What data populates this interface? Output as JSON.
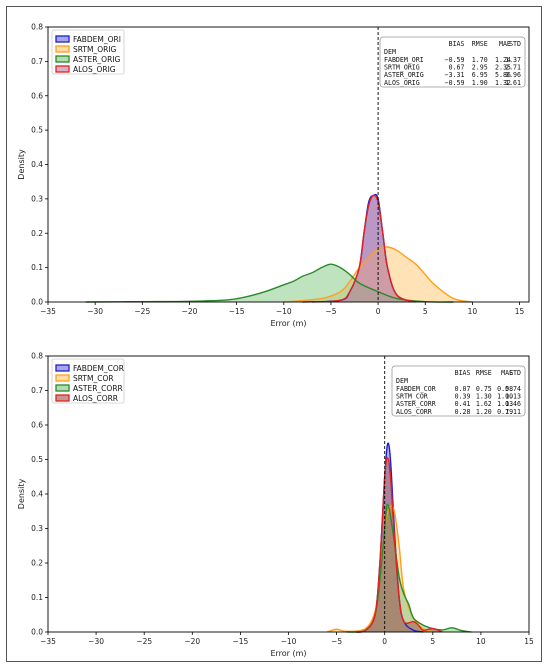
{
  "chart_data": [
    {
      "type": "area",
      "xlabel": "Error (m)",
      "ylabel": "Density",
      "xlim": [
        -35,
        16
      ],
      "ylim": [
        0,
        0.8
      ],
      "xticks": [
        -35,
        -30,
        -25,
        -20,
        -15,
        -10,
        -5,
        0,
        5,
        10,
        15
      ],
      "yticks": [
        0.0,
        0.1,
        0.2,
        0.3,
        0.4,
        0.5,
        0.6,
        0.7,
        0.8
      ],
      "vline": 0,
      "legend_position": "top-left",
      "series": [
        {
          "name": "FABDEM_ORI",
          "color": "#1f1fcf",
          "fill": "#6a6ad8",
          "x": [
            -8,
            -4,
            -3,
            -2,
            -1.5,
            -1,
            -0.5,
            0,
            0.5,
            1,
            2,
            4
          ],
          "y": [
            0,
            0.005,
            0.03,
            0.1,
            0.2,
            0.29,
            0.31,
            0.3,
            0.2,
            0.1,
            0.02,
            0
          ]
        },
        {
          "name": "SRTM_ORIG",
          "color": "#ff9f1a",
          "fill": "#ffc870",
          "x": [
            -10,
            -6,
            -4,
            -3,
            -2,
            -1,
            0,
            1,
            2,
            3,
            4,
            5,
            6,
            8,
            10
          ],
          "y": [
            0,
            0.01,
            0.03,
            0.06,
            0.1,
            0.13,
            0.155,
            0.16,
            0.15,
            0.13,
            0.11,
            0.08,
            0.05,
            0.01,
            0
          ]
        },
        {
          "name": "ASTER_ORIG",
          "color": "#2a8a2a",
          "fill": "#7fc77f",
          "x": [
            -31,
            -25,
            -20,
            -16,
            -14,
            -12,
            -10,
            -9,
            -8,
            -7,
            -6,
            -5,
            -4,
            -3,
            -2,
            0,
            2,
            5,
            8
          ],
          "y": [
            0,
            0.001,
            0.002,
            0.006,
            0.015,
            0.03,
            0.05,
            0.06,
            0.075,
            0.085,
            0.1,
            0.11,
            0.1,
            0.08,
            0.055,
            0.03,
            0.01,
            0.001,
            0
          ]
        },
        {
          "name": "ALOS_ORIG",
          "color": "#e32020",
          "fill": "#c07aa0",
          "x": [
            -7,
            -4,
            -3,
            -2,
            -1.5,
            -1,
            -0.5,
            0,
            0.5,
            1,
            2,
            4
          ],
          "y": [
            0,
            0.005,
            0.03,
            0.1,
            0.2,
            0.28,
            0.31,
            0.29,
            0.2,
            0.1,
            0.02,
            0
          ]
        }
      ],
      "stats_table": {
        "header": [
          "DEM",
          "BIAS",
          "RMSE",
          "MAE",
          "STD"
        ],
        "rows": [
          [
            "FABDEM_ORI",
            "−0.59",
            "1.70",
            "1.24",
            "1.37"
          ],
          [
            "SRTM_ORIG",
            "0.67",
            "2.95",
            "2.35",
            "2.71"
          ],
          [
            "ASTER_ORIG",
            "−3.31",
            "6.95",
            "5.86",
            "3.96"
          ],
          [
            "ALOS_ORIG",
            "−0.59",
            "1.90",
            "1.32",
            "1.61"
          ]
        ]
      }
    },
    {
      "type": "area",
      "xlabel": "Error (m)",
      "ylabel": "Density",
      "xlim": [
        -35,
        15
      ],
      "ylim": [
        0,
        0.8
      ],
      "xticks": [
        -35,
        -30,
        -25,
        -20,
        -15,
        -10,
        -5,
        0,
        5,
        10,
        15
      ],
      "yticks": [
        0.0,
        0.1,
        0.2,
        0.3,
        0.4,
        0.5,
        0.6,
        0.7,
        0.8
      ],
      "vline": 0,
      "legend_position": "top-left",
      "series": [
        {
          "name": "FABDEM_COR",
          "color": "#1f1fcf",
          "fill": "#6a6ad8",
          "x": [
            -3,
            -2,
            -1,
            -0.5,
            0,
            0.3,
            0.6,
            1,
            1.5,
            2,
            3,
            4
          ],
          "y": [
            0,
            0.005,
            0.05,
            0.2,
            0.45,
            0.545,
            0.5,
            0.3,
            0.1,
            0.03,
            0.005,
            0
          ]
        },
        {
          "name": "SRTM_COR",
          "color": "#ff9f1a",
          "fill": "#ffc870",
          "x": [
            -6,
            -5,
            -4,
            -2,
            -1,
            -0.5,
            0,
            0.5,
            1,
            1.5,
            2,
            3,
            4,
            5
          ],
          "y": [
            0,
            0.008,
            0.002,
            0.01,
            0.06,
            0.15,
            0.3,
            0.36,
            0.35,
            0.25,
            0.12,
            0.04,
            0.01,
            0
          ]
        },
        {
          "name": "ASTER_CORR",
          "color": "#2a8a2a",
          "fill": "#7fc77f",
          "x": [
            -4,
            -2,
            -1,
            -0.5,
            0,
            0.3,
            0.8,
            1.5,
            2,
            2.5,
            3,
            4,
            5,
            6,
            7,
            8,
            9
          ],
          "y": [
            0,
            0.005,
            0.05,
            0.15,
            0.3,
            0.37,
            0.3,
            0.16,
            0.11,
            0.08,
            0.04,
            0.02,
            0.01,
            0.006,
            0.012,
            0.004,
            0
          ]
        },
        {
          "name": "ALOS_CORR",
          "color": "#e32020",
          "fill": "#a0504a",
          "x": [
            -3,
            -2,
            -1,
            -0.5,
            0,
            0.3,
            0.6,
            1,
            1.5,
            2,
            3,
            3.5,
            4,
            5,
            6
          ],
          "y": [
            0,
            0.005,
            0.05,
            0.2,
            0.45,
            0.505,
            0.45,
            0.28,
            0.1,
            0.03,
            0.03,
            0.02,
            0.005,
            0.01,
            0
          ]
        }
      ],
      "stats_table": {
        "header": [
          "DEM",
          "BIAS",
          "RMSE",
          "MAE",
          "STD"
        ],
        "rows": [
          [
            "FABDEM_COR",
            "0.07",
            "0.75",
            "0.58",
            "0.74"
          ],
          [
            "SRTM_COR",
            "0.39",
            "1.30",
            "1.00",
            "1.13"
          ],
          [
            "ASTER_CORR",
            "0.41",
            "1.62",
            "1.03",
            "1.46"
          ],
          [
            "ALOS_CORR",
            "0.28",
            "1.20",
            "0.79",
            "1.11"
          ]
        ]
      }
    }
  ]
}
